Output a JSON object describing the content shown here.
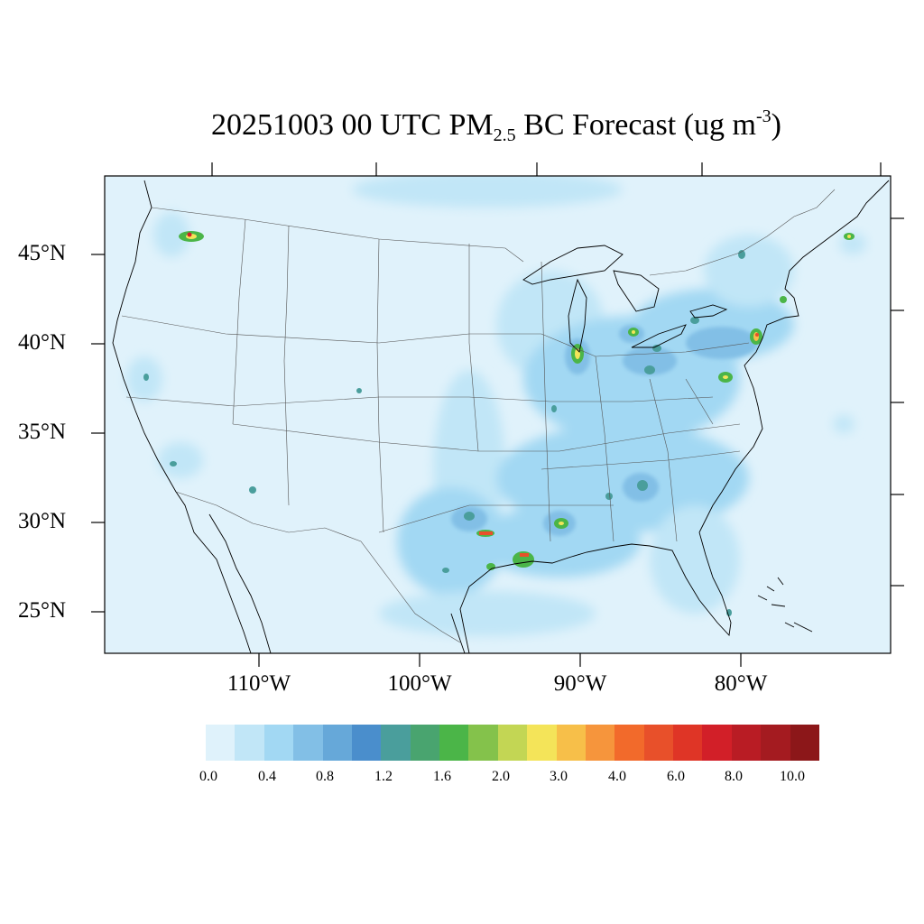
{
  "title": {
    "prefix": "20251003 00 UTC PM",
    "subscript": "2.5",
    "middle": " BC Forecast (ug m",
    "superscript": "-3",
    "suffix": ")"
  },
  "lat_labels": [
    "45°N",
    "40°N",
    "35°N",
    "30°N",
    "25°N"
  ],
  "lon_labels": [
    "110°W",
    "100°W",
    "90°W",
    "80°W"
  ],
  "colorbar": {
    "colors": [
      "#dff2fb",
      "#c1e6f7",
      "#a2d8f3",
      "#82bfe6",
      "#66a8d9",
      "#4a8ecc",
      "#4a9e9c",
      "#49a46f",
      "#4bb548",
      "#84c24b",
      "#c3d654",
      "#f4e459",
      "#f7bf49",
      "#f6953c",
      "#f26a2b",
      "#e8502a",
      "#df3526",
      "#d21f28",
      "#b91c24",
      "#a41b20",
      "#8c1719"
    ],
    "labels": [
      "0.0",
      "0.4",
      "0.8",
      "1.2",
      "1.6",
      "2.0",
      "3.0",
      "4.0",
      "6.0",
      "8.0",
      "10.0"
    ]
  },
  "map": {
    "background_color": "#e0f2fb",
    "hotspots": [
      {
        "name": "seattle",
        "level": 10
      },
      {
        "name": "chicago",
        "level": 3
      },
      {
        "name": "detroit",
        "level": 3
      },
      {
        "name": "new-york",
        "level": 6
      },
      {
        "name": "boston",
        "level": 2
      },
      {
        "name": "montreal",
        "level": 3
      },
      {
        "name": "houston",
        "level": 4
      },
      {
        "name": "beaumont",
        "level": 6
      },
      {
        "name": "baton-rouge",
        "level": 2
      },
      {
        "name": "washington-baltimore",
        "level": 3
      },
      {
        "name": "philadelphia",
        "level": 2
      },
      {
        "name": "cleveland",
        "level": 1.6
      },
      {
        "name": "atlanta",
        "level": 1.6
      },
      {
        "name": "birmingham",
        "level": 1.6
      }
    ]
  }
}
